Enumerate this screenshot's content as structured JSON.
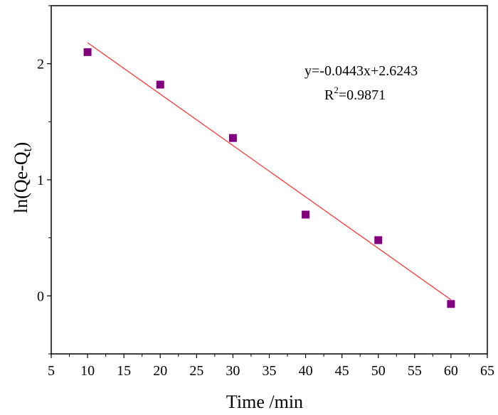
{
  "chart_data": {
    "type": "scatter",
    "xlabel": "Time /min",
    "ylabel_main": "ln(Qe-Q",
    "ylabel_sub": "t",
    "ylabel_close": ")",
    "xlim": [
      5,
      65
    ],
    "ylim": [
      -0.5,
      2.5
    ],
    "xticks": [
      5,
      10,
      15,
      20,
      25,
      30,
      35,
      40,
      45,
      50,
      55,
      60,
      65
    ],
    "yticks": [
      0,
      1,
      2
    ],
    "grid": false,
    "marker_color": "#800080",
    "line_color": "#ff2a2a",
    "points": [
      {
        "x": 10,
        "y": 2.1
      },
      {
        "x": 20,
        "y": 1.82
      },
      {
        "x": 30,
        "y": 1.36
      },
      {
        "x": 40,
        "y": 0.7
      },
      {
        "x": 50,
        "y": 0.48
      },
      {
        "x": 60,
        "y": -0.07
      }
    ],
    "fit": {
      "slope": -0.0443,
      "intercept": 2.6243,
      "x_range": [
        10,
        60
      ]
    },
    "annotations": {
      "equation": "y=-0.0443x+2.6243",
      "r2_prefix": "R",
      "r2_sup": "2",
      "r2_value": "=0.9871"
    }
  }
}
